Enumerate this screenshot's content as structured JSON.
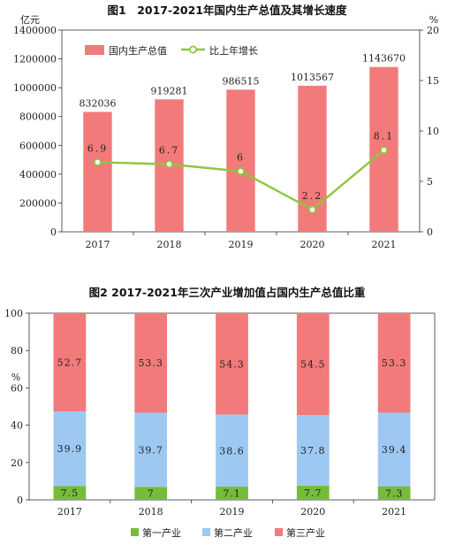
{
  "chart_data": [
    {
      "type": "bar+line",
      "title": "图1　2017-2021年国内生产总值及其增长速度",
      "left_unit": "亿元",
      "right_unit": "%",
      "categories": [
        "2017",
        "2018",
        "2019",
        "2020",
        "2021"
      ],
      "series": [
        {
          "name": "国内生产总值",
          "type": "bar",
          "axis": "left",
          "color": "#F37A7A",
          "values": [
            832036,
            919281,
            986515,
            1013567,
            1143670
          ]
        },
        {
          "name": "比上年增长",
          "type": "line",
          "axis": "right",
          "color": "#8DC63F",
          "values": [
            6.9,
            6.7,
            6.0,
            2.2,
            8.1
          ]
        }
      ],
      "left_ylim": [
        0,
        1400000
      ],
      "left_ticks": [
        "0",
        "200000",
        "400000",
        "600000",
        "800000",
        "1000000",
        "1200000",
        "1400000"
      ],
      "right_ylim": [
        0,
        20
      ],
      "right_ticks": [
        "0",
        "5",
        "10",
        "15",
        "20"
      ],
      "legend_position": "top"
    },
    {
      "type": "stacked-bar",
      "title": "图2  2017-2021年三次产业增加值占国内生产总值比重",
      "y_unit": "%",
      "categories": [
        "2017",
        "2018",
        "2019",
        "2020",
        "2021"
      ],
      "series": [
        {
          "name": "第一产业",
          "color": "#76BC3A",
          "values": [
            7.5,
            7.0,
            7.1,
            7.7,
            7.3
          ]
        },
        {
          "name": "第二产业",
          "color": "#9DC8F2",
          "values": [
            39.9,
            39.7,
            38.6,
            37.8,
            39.4
          ]
        },
        {
          "name": "第三产业",
          "color": "#F37A7A",
          "values": [
            52.7,
            53.3,
            54.3,
            54.5,
            53.3
          ]
        }
      ],
      "ylim": [
        0,
        100
      ],
      "y_ticks": [
        "0",
        "20",
        "40",
        "60",
        "80",
        "100"
      ],
      "legend_position": "bottom"
    }
  ]
}
